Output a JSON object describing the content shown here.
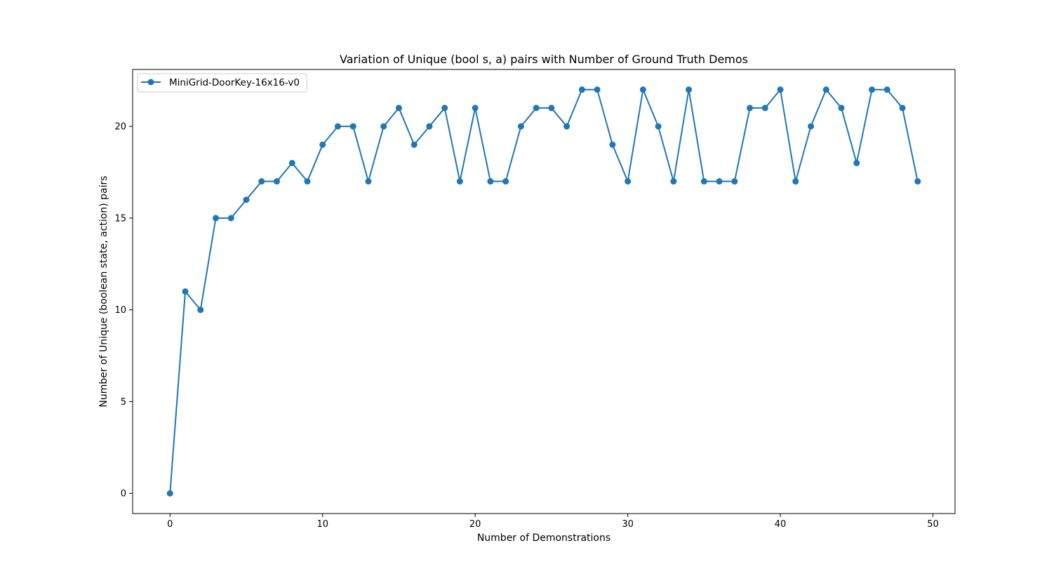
{
  "chart_data": {
    "type": "line",
    "title": "Variation of Unique (bool s, a) pairs with Number of Ground Truth Demos",
    "xlabel": "Number of Demonstrations",
    "ylabel": "Number of Unique (boolean state, action) pairs",
    "xlim": [
      -2.45,
      51.45
    ],
    "ylim": [
      -1.1,
      23.1
    ],
    "xticks": [
      0,
      10,
      20,
      30,
      40,
      50
    ],
    "yticks": [
      0,
      5,
      10,
      15,
      20
    ],
    "grid": false,
    "legend_position": "top-left",
    "series": [
      {
        "name": "MiniGrid-DoorKey-16x16-v0",
        "color": "#1f77b4",
        "marker": "circle",
        "x": [
          0,
          1,
          2,
          3,
          4,
          5,
          6,
          7,
          8,
          9,
          10,
          11,
          12,
          13,
          14,
          15,
          16,
          17,
          18,
          19,
          20,
          21,
          22,
          23,
          24,
          25,
          26,
          27,
          28,
          29,
          30,
          31,
          32,
          33,
          34,
          35,
          36,
          37,
          38,
          39,
          40,
          41,
          42,
          43,
          44,
          45,
          46,
          47,
          48,
          49
        ],
        "y": [
          0,
          11,
          10,
          15,
          15,
          16,
          17,
          17,
          18,
          17,
          19,
          20,
          20,
          17,
          20,
          21,
          19,
          20,
          21,
          17,
          21,
          17,
          17,
          20,
          21,
          21,
          20,
          22,
          22,
          19,
          17,
          22,
          20,
          17,
          22,
          17,
          17,
          17,
          21,
          21,
          22,
          17,
          20,
          22,
          21,
          18,
          22,
          22,
          21,
          17
        ]
      }
    ]
  }
}
